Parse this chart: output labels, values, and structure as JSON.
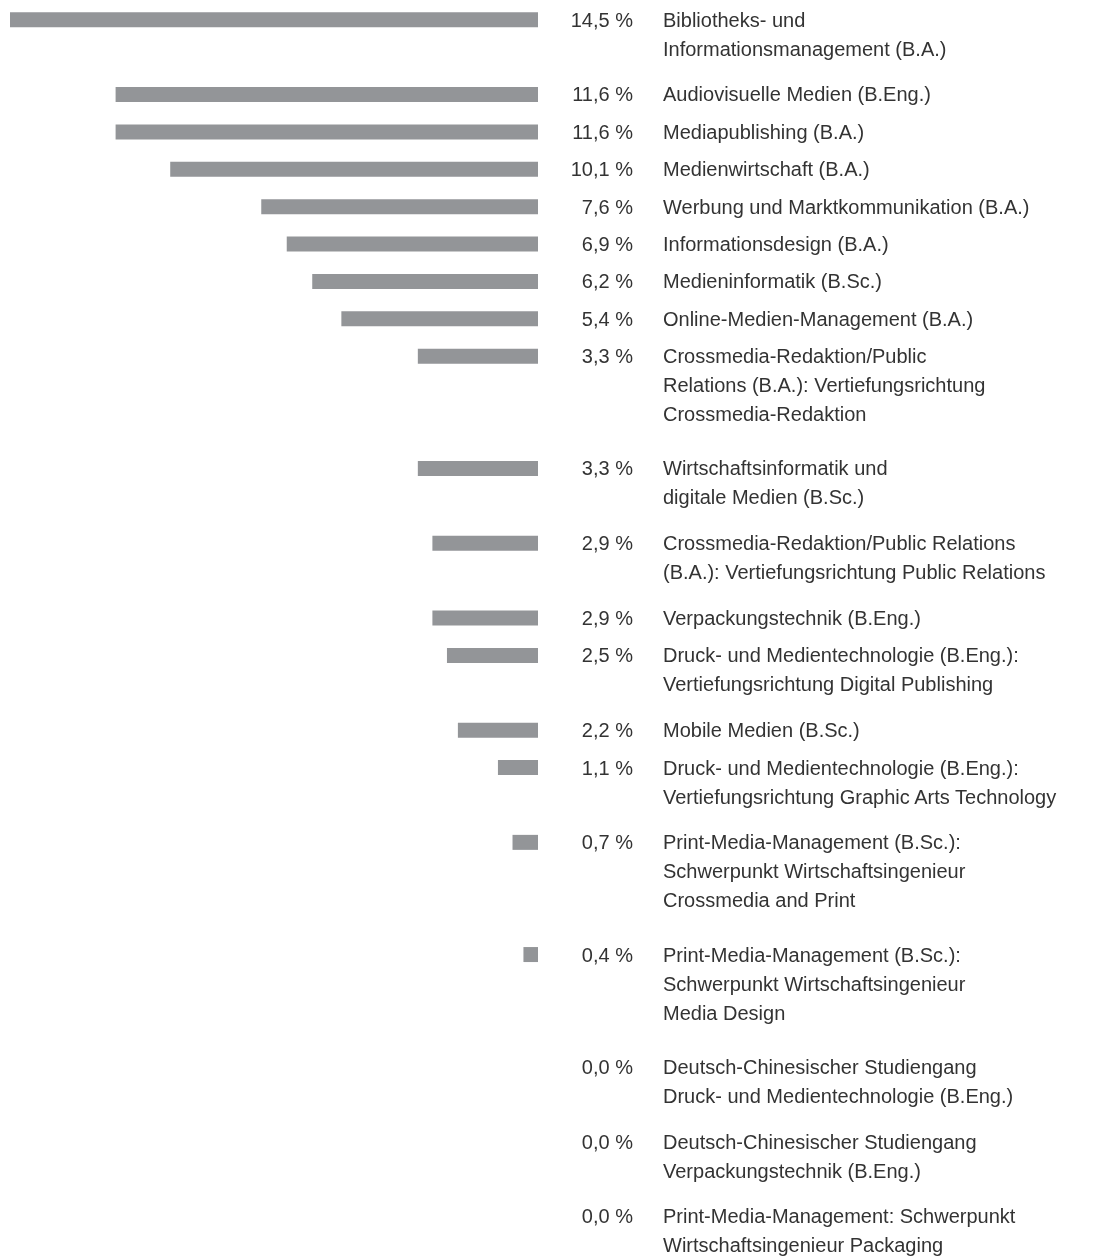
{
  "chart_data": {
    "type": "bar",
    "orientation": "horizontal",
    "categories": [
      "Bibliotheks- und\nInformationsmanagement (B.A.)",
      "Audiovisuelle Medien (B.Eng.)",
      "Mediapublishing (B.A.)",
      "Medienwirtschaft (B.A.)",
      "Werbung und Marktkommunikation (B.A.)",
      "Informationsdesign (B.A.)",
      "Medieninformatik (B.Sc.)",
      "Online-Medien-Management (B.A.)",
      "Crossmedia-Redaktion/Public\nRelations (B.A.): Vertiefungsrichtung\nCrossmedia-Redaktion",
      "Wirtschaftsinformatik und\ndigitale Medien (B.Sc.)",
      "Crossmedia-Redaktion/Public Relations\n(B.A.): Vertiefungsrichtung Public Relations",
      "Verpackungstechnik (B.Eng.)",
      "Druck- und Medientechnologie (B.Eng.):\nVertiefungsrichtung Digital Publishing",
      "Mobile Medien (B.Sc.)",
      "Druck- und Medientechnologie (B.Eng.):\nVertiefungsrichtung Graphic Arts Technology",
      "Print-Media-Management (B.Sc.):\nSchwerpunkt Wirtschaftsingenieur\nCrossmedia and Print",
      "Print-Media-Management (B.Sc.):\nSchwerpunkt Wirtschaftsingenieur\nMedia Design",
      "Deutsch-Chinesischer Studiengang\nDruck- und Medientechnologie (B.Eng.)",
      "Deutsch-Chinesischer Studiengang\nVerpackungstechnik (B.Eng.)",
      "Print-Media-Management: Schwerpunkt\nWirtschaftsingenieur Packaging"
    ],
    "values": [
      14.5,
      11.6,
      11.6,
      10.1,
      7.6,
      6.9,
      6.2,
      5.4,
      3.3,
      3.3,
      2.9,
      2.9,
      2.5,
      2.2,
      1.1,
      0.7,
      0.4,
      0,
      0,
      0
    ],
    "value_labels": [
      "14,5 %",
      "11,6 %",
      "11,6 %",
      "10,1 %",
      "7,6 %",
      "6,9 %",
      "6,2 %",
      "5,4 %",
      "3,3 %",
      "3,3 %",
      "2,9 %",
      "2,9 %",
      "2,5 %",
      "2,2 %",
      "1,1 %",
      "0,7 %",
      "0,4 %",
      "0,0 %",
      "0,0 %",
      "0,0 %"
    ],
    "color": "#939598",
    "xlim": [
      14.5,
      0
    ],
    "tick_labels": "y"
  }
}
